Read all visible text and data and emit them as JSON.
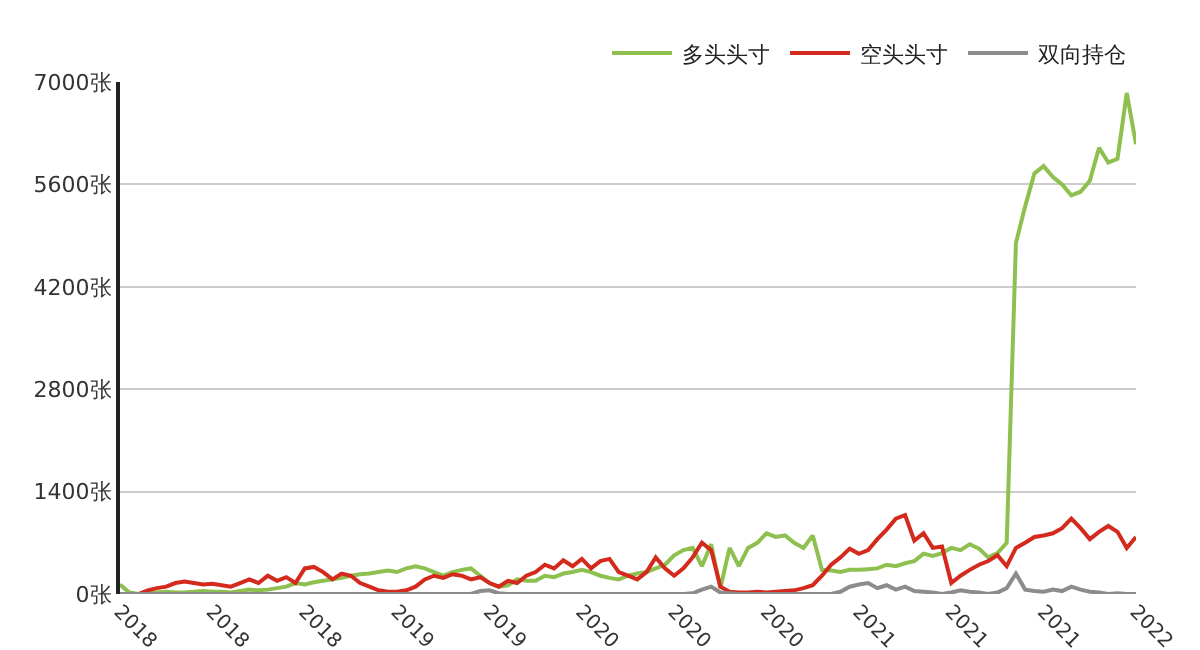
{
  "chart_data": {
    "type": "line",
    "categories": [
      "2018",
      null,
      null,
      null,
      null,
      null,
      null,
      null,
      null,
      null,
      "2018",
      null,
      null,
      null,
      null,
      null,
      null,
      null,
      null,
      null,
      "2018",
      null,
      null,
      null,
      null,
      null,
      null,
      null,
      null,
      null,
      "2019",
      null,
      null,
      null,
      null,
      null,
      null,
      null,
      null,
      null,
      "2019",
      null,
      null,
      null,
      null,
      null,
      null,
      null,
      null,
      null,
      "2020",
      null,
      null,
      null,
      null,
      null,
      null,
      null,
      null,
      null,
      "2020",
      null,
      null,
      null,
      null,
      null,
      null,
      null,
      null,
      null,
      "2020",
      null,
      null,
      null,
      null,
      null,
      null,
      null,
      null,
      null,
      "2021",
      null,
      null,
      null,
      null,
      null,
      null,
      null,
      null,
      null,
      "2021",
      null,
      null,
      null,
      null,
      null,
      null,
      null,
      null,
      null,
      "2021",
      null,
      null,
      null,
      null,
      null,
      null,
      null,
      null,
      null,
      "2022"
    ],
    "series": [
      {
        "name": "多头头寸",
        "color": "#8dc04f",
        "values": [
          130,
          20,
          0,
          10,
          20,
          30,
          20,
          20,
          30,
          40,
          30,
          30,
          20,
          40,
          60,
          50,
          60,
          80,
          100,
          150,
          130,
          160,
          180,
          200,
          220,
          250,
          270,
          280,
          300,
          320,
          300,
          350,
          380,
          350,
          300,
          250,
          300,
          330,
          350,
          250,
          150,
          100,
          120,
          200,
          180,
          180,
          250,
          230,
          280,
          300,
          330,
          300,
          250,
          220,
          200,
          250,
          280,
          300,
          350,
          400,
          530,
          600,
          630,
          380,
          680,
          80,
          630,
          380,
          630,
          700,
          830,
          780,
          800,
          700,
          630,
          800,
          330,
          320,
          300,
          330,
          330,
          340,
          350,
          400,
          380,
          420,
          450,
          550,
          520,
          560,
          630,
          600,
          680,
          620,
          500,
          560,
          700,
          4800,
          5300,
          5750,
          5850,
          5700,
          5600,
          5450,
          5500,
          5650,
          6100,
          5900,
          5950,
          6850,
          6150
        ]
      },
      {
        "name": "空头头寸",
        "color": "#d42a1e",
        "values": [
          0,
          0,
          0,
          50,
          80,
          100,
          150,
          170,
          150,
          130,
          140,
          120,
          100,
          150,
          200,
          150,
          250,
          180,
          230,
          150,
          350,
          370,
          300,
          200,
          280,
          250,
          150,
          100,
          50,
          30,
          30,
          50,
          100,
          200,
          250,
          220,
          270,
          250,
          200,
          230,
          150,
          100,
          180,
          150,
          250,
          300,
          400,
          350,
          460,
          380,
          480,
          350,
          450,
          480,
          300,
          250,
          200,
          300,
          500,
          350,
          250,
          350,
          500,
          700,
          600,
          100,
          30,
          20,
          20,
          30,
          20,
          30,
          40,
          50,
          80,
          120,
          250,
          400,
          500,
          620,
          550,
          600,
          750,
          880,
          1030,
          1080,
          730,
          830,
          630,
          650,
          150,
          250,
          330,
          400,
          450,
          530,
          380,
          630,
          700,
          780,
          800,
          830,
          900,
          1030,
          900,
          750,
          850,
          930,
          850,
          630,
          780
        ]
      },
      {
        "name": "双向持仓",
        "color": "#8c8c8c",
        "values": [
          0,
          0,
          0,
          0,
          0,
          0,
          0,
          0,
          0,
          0,
          0,
          0,
          0,
          0,
          0,
          0,
          0,
          0,
          0,
          0,
          0,
          0,
          0,
          0,
          0,
          0,
          0,
          0,
          0,
          0,
          0,
          0,
          0,
          0,
          0,
          0,
          0,
          0,
          0,
          40,
          50,
          10,
          0,
          0,
          0,
          0,
          0,
          0,
          0,
          0,
          0,
          0,
          0,
          0,
          0,
          0,
          0,
          0,
          0,
          0,
          0,
          0,
          10,
          60,
          100,
          20,
          10,
          0,
          0,
          0,
          0,
          0,
          0,
          0,
          0,
          0,
          0,
          0,
          30,
          100,
          130,
          150,
          80,
          120,
          60,
          100,
          40,
          30,
          20,
          0,
          20,
          50,
          30,
          20,
          0,
          20,
          80,
          280,
          60,
          40,
          30,
          60,
          40,
          100,
          60,
          30,
          20,
          0,
          10,
          0,
          0
        ]
      }
    ],
    "ylim": [
      0,
      7000
    ],
    "yticks": [
      {
        "value": 0,
        "label": "0张"
      },
      {
        "value": 1400,
        "label": "1400张"
      },
      {
        "value": 2800,
        "label": "2800张"
      },
      {
        "value": 4200,
        "label": "4200张"
      },
      {
        "value": 5600,
        "label": "5600张"
      },
      {
        "value": 7000,
        "label": "7000张"
      }
    ],
    "grid": "y",
    "legend": "top right",
    "marker": "none",
    "line_style": "solid"
  }
}
